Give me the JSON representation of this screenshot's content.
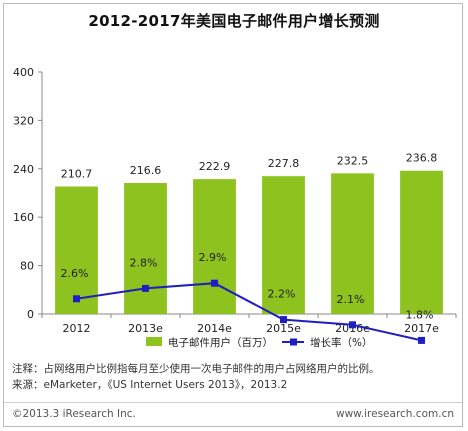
{
  "title": "2012-2017年美国电子邮件用户增长预测",
  "chart_data": {
    "type": "bar+line",
    "categories": [
      "2012",
      "2013e",
      "2014e",
      "2015e",
      "2016e",
      "2017e"
    ],
    "bar_series": {
      "name": "电子邮件用户（百万）",
      "values": [
        210.7,
        216.6,
        222.9,
        227.8,
        232.5,
        236.8
      ],
      "color": "#8dc21f"
    },
    "line_series": {
      "name": "增长率（%）",
      "values": [
        2.6,
        2.8,
        2.9,
        2.2,
        2.1,
        1.8
      ],
      "labels": [
        "2.6%",
        "2.8%",
        "2.9%",
        "2.2%",
        "2.1%",
        "1.8%"
      ],
      "color": "#1f1fbf"
    },
    "y_ticks": [
      "0",
      "80",
      "160",
      "240",
      "320",
      "400"
    ],
    "ylim": [
      0,
      400
    ],
    "legend_position": "bottom"
  },
  "notes": {
    "line1": "注释：占网络用户比例指每月至少使用一次电子邮件的用户占网络用户的比例。",
    "line2": "来源：eMarketer，《US Internet Users 2013》，2013.2"
  },
  "footer": {
    "copyright": "©2013.3 iResearch Inc.",
    "website": "www.iresearch.com.cn"
  }
}
